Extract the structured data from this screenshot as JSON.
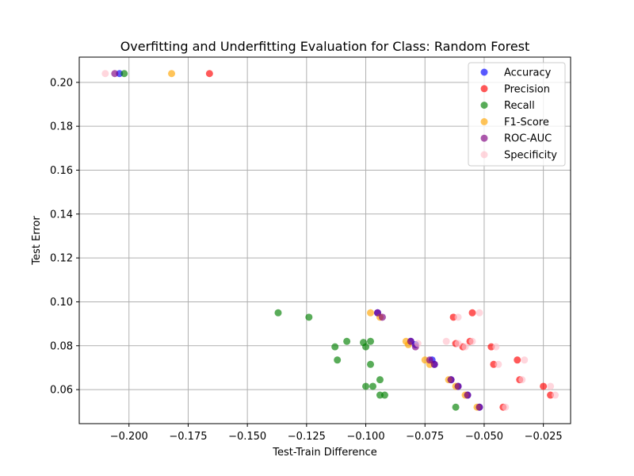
{
  "chart_data": {
    "type": "scatter",
    "title": "Overfitting and Underfitting Evaluation for Class: Random Forest",
    "xlabel": "Test-Train Difference",
    "ylabel": "Test Error",
    "xlim": [
      -0.221,
      -0.0135
    ],
    "ylim": [
      0.0445,
      0.2115
    ],
    "xticks": [
      -0.2,
      -0.175,
      -0.15,
      -0.125,
      -0.1,
      -0.075,
      -0.05,
      -0.025
    ],
    "xtick_labels": [
      "−0.200",
      "−0.175",
      "−0.150",
      "−0.125",
      "−0.100",
      "−0.075",
      "−0.050",
      "−0.025"
    ],
    "yticks": [
      0.06,
      0.08,
      0.1,
      0.12,
      0.14,
      0.16,
      0.18,
      0.2
    ],
    "ytick_labels": [
      "0.06",
      "0.08",
      "0.10",
      "0.12",
      "0.14",
      "0.16",
      "0.18",
      "0.20"
    ],
    "grid": true,
    "legend_position": "top-right",
    "series": [
      {
        "name": "Accuracy",
        "color": "#0000ff",
        "points": [
          [
            -0.204,
            0.204
          ],
          [
            -0.095,
            0.095
          ],
          [
            -0.081,
            0.082
          ],
          [
            -0.079,
            0.0805
          ],
          [
            -0.072,
            0.0735
          ],
          [
            -0.071,
            0.0715
          ],
          [
            -0.064,
            0.0645
          ],
          [
            -0.061,
            0.0615
          ],
          [
            -0.057,
            0.0575
          ],
          [
            -0.052,
            0.052
          ]
        ]
      },
      {
        "name": "Precision",
        "color": "#ff0000",
        "points": [
          [
            -0.166,
            0.204
          ],
          [
            -0.055,
            0.095
          ],
          [
            -0.063,
            0.093
          ],
          [
            -0.056,
            0.082
          ],
          [
            -0.062,
            0.081
          ],
          [
            -0.059,
            0.0795
          ],
          [
            -0.047,
            0.0795
          ],
          [
            -0.046,
            0.0715
          ],
          [
            -0.036,
            0.0735
          ],
          [
            -0.035,
            0.0645
          ],
          [
            -0.025,
            0.0615
          ],
          [
            -0.022,
            0.0575
          ],
          [
            -0.042,
            0.052
          ]
        ]
      },
      {
        "name": "Recall",
        "color": "#008000",
        "points": [
          [
            -0.202,
            0.204
          ],
          [
            -0.137,
            0.095
          ],
          [
            -0.124,
            0.093
          ],
          [
            -0.113,
            0.0795
          ],
          [
            -0.108,
            0.082
          ],
          [
            -0.101,
            0.0815
          ],
          [
            -0.098,
            0.082
          ],
          [
            -0.1,
            0.0795
          ],
          [
            -0.112,
            0.0735
          ],
          [
            -0.098,
            0.0715
          ],
          [
            -0.094,
            0.0645
          ],
          [
            -0.1,
            0.0615
          ],
          [
            -0.097,
            0.0615
          ],
          [
            -0.094,
            0.0575
          ],
          [
            -0.092,
            0.0575
          ],
          [
            -0.062,
            0.052
          ]
        ]
      },
      {
        "name": "F1-Score",
        "color": "#ffa500",
        "points": [
          [
            -0.182,
            0.204
          ],
          [
            -0.098,
            0.095
          ],
          [
            -0.094,
            0.093
          ],
          [
            -0.083,
            0.082
          ],
          [
            -0.082,
            0.0805
          ],
          [
            -0.075,
            0.0735
          ],
          [
            -0.073,
            0.0715
          ],
          [
            -0.065,
            0.0645
          ],
          [
            -0.062,
            0.0615
          ],
          [
            -0.058,
            0.0575
          ],
          [
            -0.053,
            0.052
          ]
        ]
      },
      {
        "name": "ROC-AUC",
        "color": "#800080",
        "points": [
          [
            -0.206,
            0.204
          ],
          [
            -0.095,
            0.095
          ],
          [
            -0.093,
            0.093
          ],
          [
            -0.081,
            0.082
          ],
          [
            -0.079,
            0.0795
          ],
          [
            -0.073,
            0.0735
          ],
          [
            -0.071,
            0.0715
          ],
          [
            -0.064,
            0.0645
          ],
          [
            -0.061,
            0.0615
          ],
          [
            -0.057,
            0.0575
          ],
          [
            -0.052,
            0.052
          ]
        ]
      },
      {
        "name": "Specificity",
        "color": "#ffc0cb",
        "points": [
          [
            -0.21,
            0.204
          ],
          [
            -0.052,
            0.095
          ],
          [
            -0.061,
            0.093
          ],
          [
            -0.078,
            0.081
          ],
          [
            -0.066,
            0.082
          ],
          [
            -0.055,
            0.082
          ],
          [
            -0.061,
            0.081
          ],
          [
            -0.058,
            0.0795
          ],
          [
            -0.045,
            0.0795
          ],
          [
            -0.044,
            0.0715
          ],
          [
            -0.033,
            0.0735
          ],
          [
            -0.034,
            0.0645
          ],
          [
            -0.022,
            0.0615
          ],
          [
            -0.02,
            0.0575
          ],
          [
            -0.041,
            0.052
          ]
        ]
      }
    ]
  }
}
